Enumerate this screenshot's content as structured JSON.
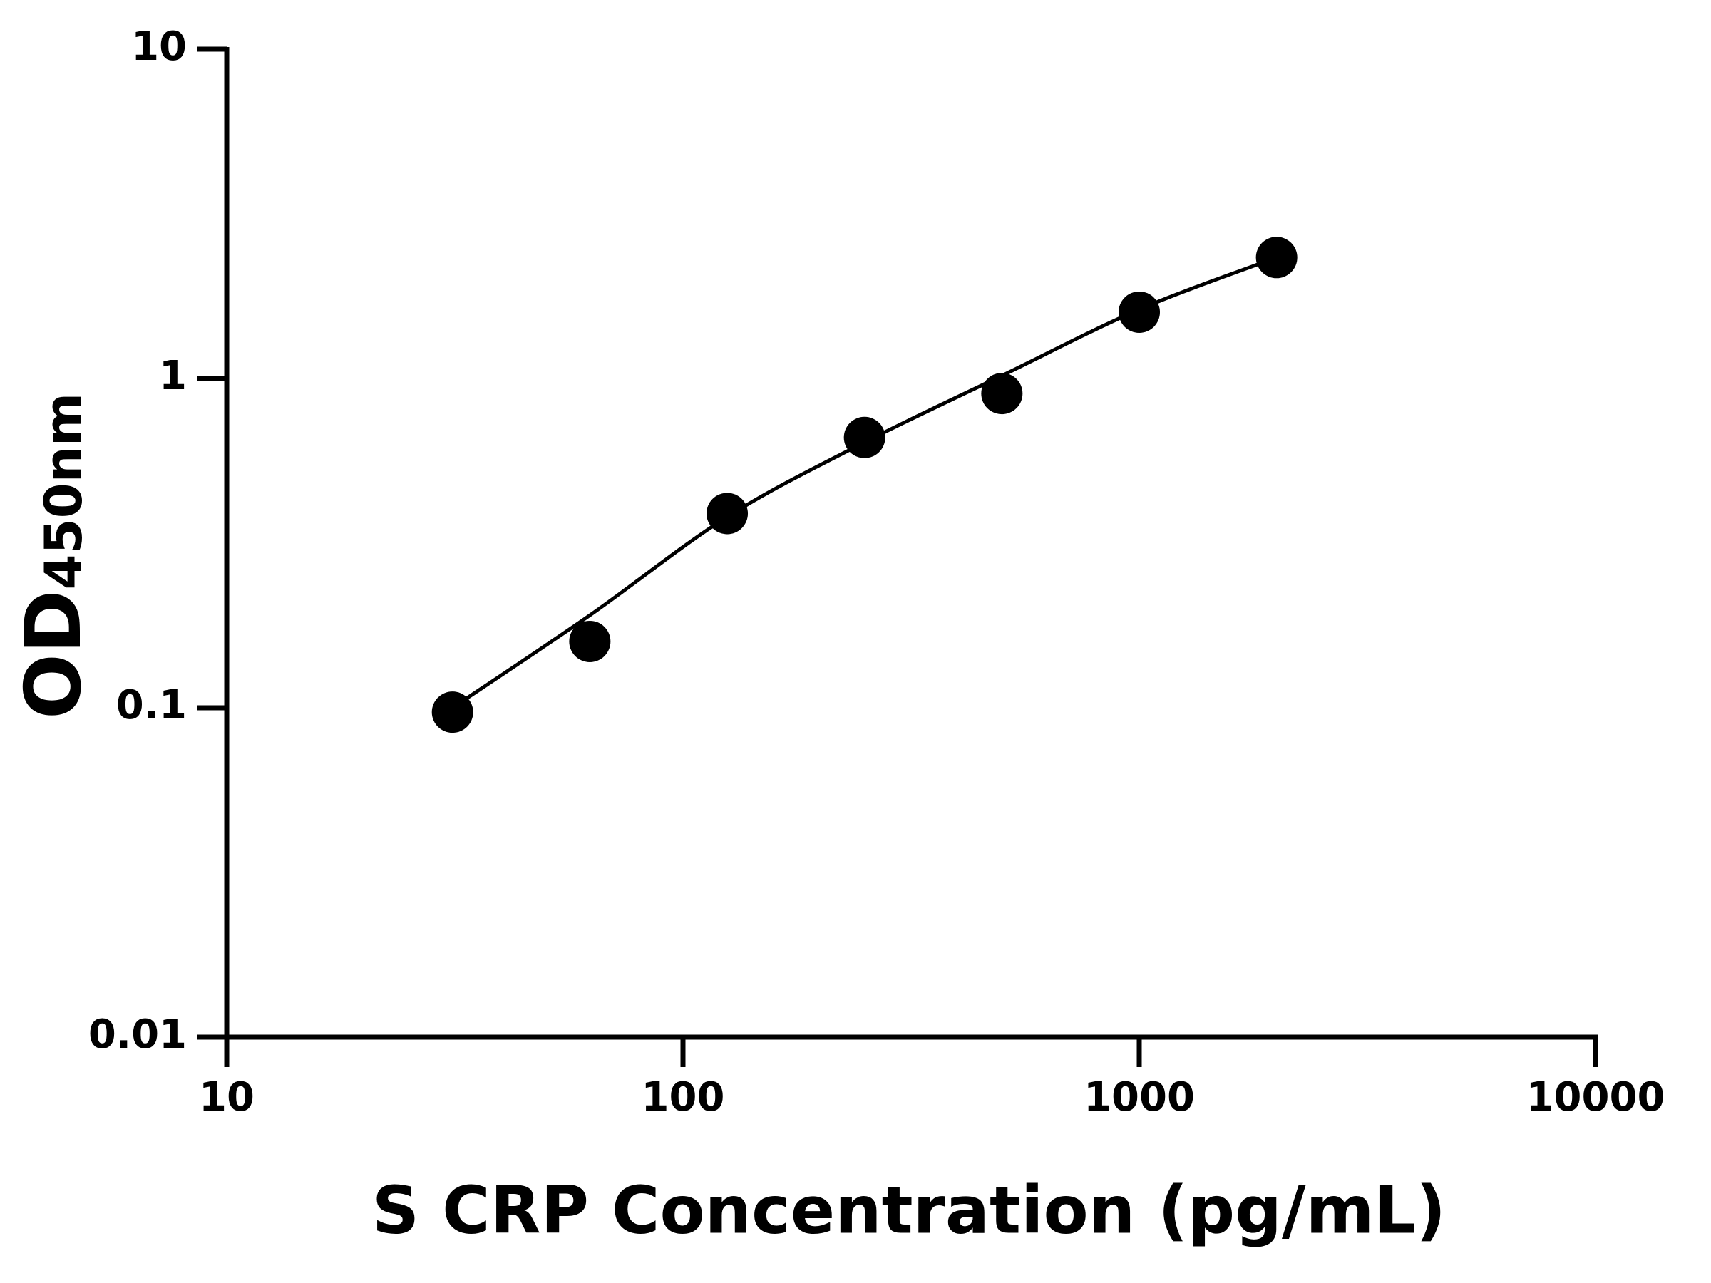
{
  "chart_data": {
    "type": "scatter",
    "x_label": "S CRP Concentration (pg/mL)",
    "y_label": {
      "main": "OD",
      "subscript": "450nm"
    },
    "x": [
      31.25,
      62.5,
      125,
      250,
      500,
      1000,
      2000
    ],
    "series": [
      {
        "color": "#000000",
        "style": "points",
        "values": [
          0.097,
          0.159,
          0.389,
          0.662,
          0.9,
          1.59,
          2.33
        ]
      },
      {
        "color": "#000000",
        "style": "line",
        "values": [
          0.1,
          0.191,
          0.38,
          0.64,
          1.02,
          1.62,
          2.33
        ]
      }
    ],
    "xlim": [
      10,
      10000
    ],
    "xticks": [
      10,
      100,
      1000,
      10000
    ],
    "xscale": "log",
    "ylim": [
      0.01,
      10
    ],
    "yticks": [
      0.01,
      0.1,
      1,
      10
    ],
    "yscale": "log",
    "grid": false
  }
}
